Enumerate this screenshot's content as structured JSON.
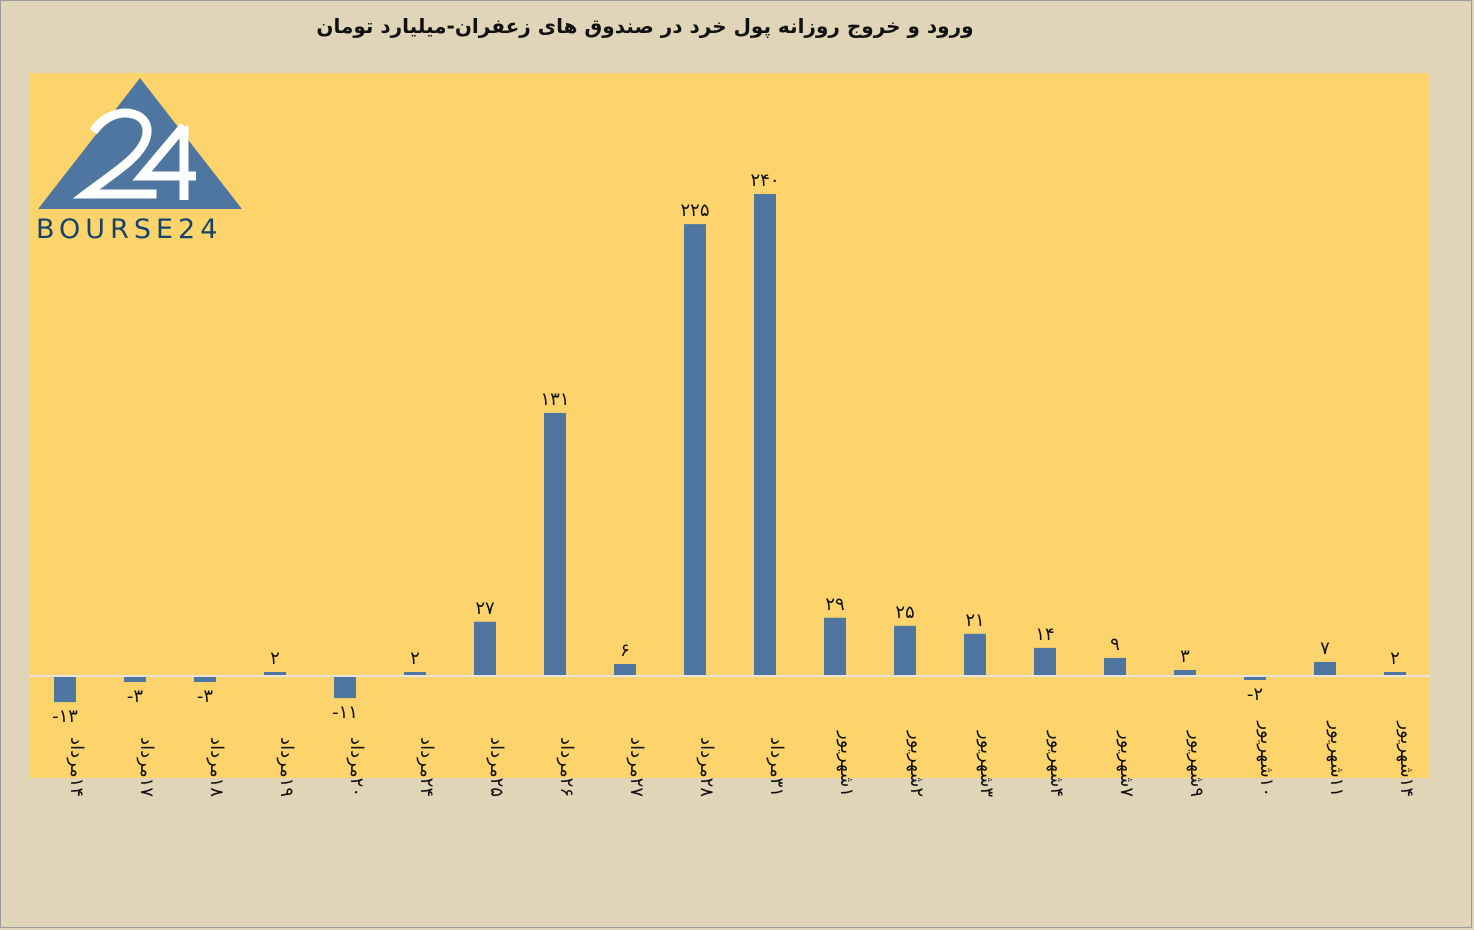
{
  "chart_data": {
    "type": "bar",
    "title": "ورود و خروج روزانه پول خرد در صندوق های زعفران-میلیارد تومان",
    "categories": [
      "۱۴مرداد",
      "۱۷مرداد",
      "۱۸مرداد",
      "۱۹مرداد",
      "۲۰مرداد",
      "۲۴مرداد",
      "۲۵مرداد",
      "۲۶مرداد",
      "۲۷مرداد",
      "۲۸مرداد",
      "۳۱مرداد",
      "۱شهریور",
      "۲شهریور",
      "۳شهریور",
      "۴شهریور",
      "۷شهریور",
      "۹شهریور",
      "۱۰شهریور",
      "۱۱شهریور",
      "۱۴شهریور"
    ],
    "values": [
      -13,
      -3,
      -3,
      2,
      -11,
      2,
      27,
      131,
      6,
      225,
      240,
      29,
      25,
      21,
      14,
      9,
      3,
      -2,
      7,
      2
    ],
    "data_labels": [
      "-۱۳",
      "-۳",
      "-۳",
      "۲",
      "-۱۱",
      "۲",
      "۲۷",
      "۱۳۱",
      "۶",
      "۲۲۵",
      "۲۴۰",
      "۲۹",
      "۲۵",
      "۲۱",
      "۱۴",
      "۹",
      "۳",
      "-۲",
      "۷",
      "۲"
    ],
    "ylim": [
      -50,
      300
    ],
    "grid": false,
    "legend": "none",
    "bar_color": "#4f76a0",
    "plot_background": "#fdd46b",
    "page_background": "#e1d5b9"
  },
  "logo": {
    "text": "BOURSE24",
    "mark_text": "24",
    "color": "#4f76a0"
  }
}
